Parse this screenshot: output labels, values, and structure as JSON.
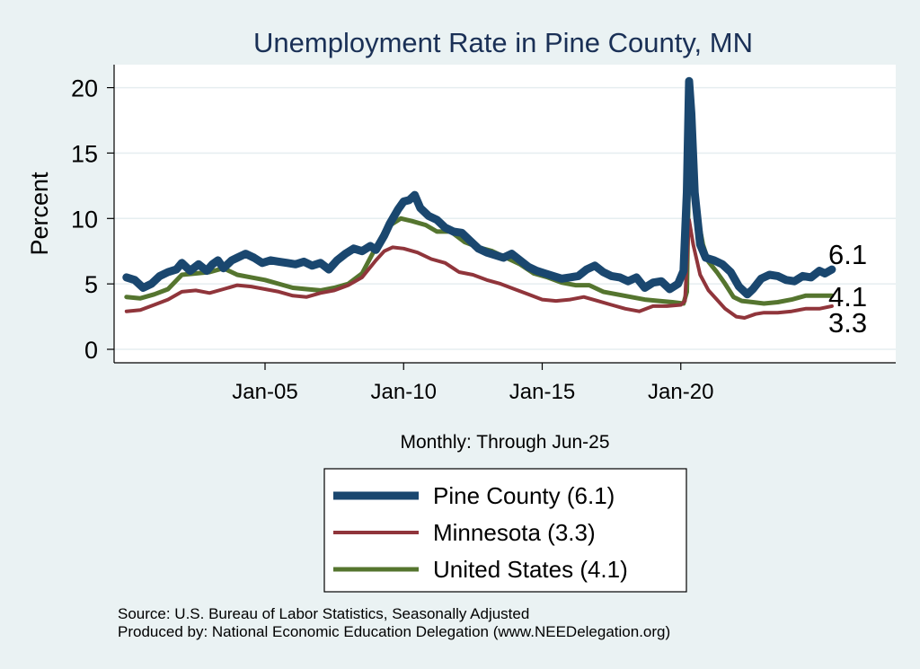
{
  "chart_data": {
    "type": "line",
    "title": "Unemployment Rate in Pine  County, MN",
    "ylabel": "Percent",
    "xlabel": "Monthly: Through Jun-25",
    "ylim": [
      0,
      21
    ],
    "yticks": [
      0,
      5,
      10,
      15,
      20
    ],
    "xticks": [
      {
        "label": "Jan-05",
        "x": 2005
      },
      {
        "label": "Jan-10",
        "x": 2010
      },
      {
        "label": "Jan-15",
        "x": 2015
      },
      {
        "label": "Jan-20",
        "x": 2020
      }
    ],
    "xlim": [
      2000,
      2026.5
    ],
    "grid": true,
    "legend_position": "bottom",
    "series": [
      {
        "name": "Pine  County (6.1)",
        "end_label": "6.1",
        "color": "#1a476f",
        "points": [
          [
            2000.0,
            5.5
          ],
          [
            2000.3,
            5.3
          ],
          [
            2000.6,
            4.7
          ],
          [
            2000.9,
            5.0
          ],
          [
            2001.2,
            5.6
          ],
          [
            2001.5,
            5.9
          ],
          [
            2001.8,
            6.1
          ],
          [
            2002.0,
            6.6
          ],
          [
            2002.3,
            6.0
          ],
          [
            2002.6,
            6.5
          ],
          [
            2002.9,
            6.0
          ],
          [
            2003.1,
            6.5
          ],
          [
            2003.3,
            6.8
          ],
          [
            2003.5,
            6.2
          ],
          [
            2003.8,
            6.8
          ],
          [
            2004.0,
            7.0
          ],
          [
            2004.3,
            7.3
          ],
          [
            2004.6,
            7.0
          ],
          [
            2004.9,
            6.6
          ],
          [
            2005.2,
            6.8
          ],
          [
            2005.5,
            6.7
          ],
          [
            2005.8,
            6.6
          ],
          [
            2006.1,
            6.5
          ],
          [
            2006.4,
            6.7
          ],
          [
            2006.7,
            6.4
          ],
          [
            2007.0,
            6.6
          ],
          [
            2007.3,
            6.1
          ],
          [
            2007.6,
            6.8
          ],
          [
            2007.9,
            7.3
          ],
          [
            2008.2,
            7.7
          ],
          [
            2008.5,
            7.5
          ],
          [
            2008.8,
            7.9
          ],
          [
            2009.0,
            7.6
          ],
          [
            2009.3,
            8.7
          ],
          [
            2009.5,
            9.6
          ],
          [
            2009.8,
            10.7
          ],
          [
            2010.0,
            11.3
          ],
          [
            2010.2,
            11.4
          ],
          [
            2010.4,
            11.8
          ],
          [
            2010.6,
            10.8
          ],
          [
            2010.9,
            10.2
          ],
          [
            2011.2,
            9.9
          ],
          [
            2011.5,
            9.3
          ],
          [
            2011.8,
            9.0
          ],
          [
            2012.1,
            8.9
          ],
          [
            2012.4,
            8.3
          ],
          [
            2012.7,
            7.7
          ],
          [
            2013.0,
            7.4
          ],
          [
            2013.3,
            7.2
          ],
          [
            2013.6,
            7.0
          ],
          [
            2013.9,
            7.3
          ],
          [
            2014.2,
            6.8
          ],
          [
            2014.5,
            6.3
          ],
          [
            2014.8,
            6.0
          ],
          [
            2015.1,
            5.8
          ],
          [
            2015.4,
            5.6
          ],
          [
            2015.7,
            5.4
          ],
          [
            2016.0,
            5.5
          ],
          [
            2016.3,
            5.6
          ],
          [
            2016.6,
            6.1
          ],
          [
            2016.9,
            6.4
          ],
          [
            2017.2,
            5.9
          ],
          [
            2017.5,
            5.6
          ],
          [
            2017.8,
            5.5
          ],
          [
            2018.1,
            5.2
          ],
          [
            2018.4,
            5.5
          ],
          [
            2018.7,
            4.7
          ],
          [
            2019.0,
            5.1
          ],
          [
            2019.3,
            5.2
          ],
          [
            2019.6,
            4.6
          ],
          [
            2019.9,
            5.0
          ],
          [
            2020.1,
            6.0
          ],
          [
            2020.22,
            12.0
          ],
          [
            2020.3,
            20.5
          ],
          [
            2020.38,
            18.0
          ],
          [
            2020.5,
            12.0
          ],
          [
            2020.7,
            8.0
          ],
          [
            2020.9,
            7.0
          ],
          [
            2021.2,
            6.8
          ],
          [
            2021.5,
            6.5
          ],
          [
            2021.8,
            5.9
          ],
          [
            2022.1,
            4.8
          ],
          [
            2022.4,
            4.2
          ],
          [
            2022.6,
            4.6
          ],
          [
            2022.9,
            5.4
          ],
          [
            2023.2,
            5.7
          ],
          [
            2023.5,
            5.6
          ],
          [
            2023.8,
            5.3
          ],
          [
            2024.1,
            5.2
          ],
          [
            2024.4,
            5.6
          ],
          [
            2024.7,
            5.5
          ],
          [
            2025.0,
            6.0
          ],
          [
            2025.2,
            5.8
          ],
          [
            2025.45,
            6.1
          ]
        ]
      },
      {
        "name": "Minnesota (3.3)",
        "end_label": "3.3",
        "color": "#90353b",
        "points": [
          [
            2000.0,
            2.9
          ],
          [
            2000.5,
            3.0
          ],
          [
            2001.0,
            3.4
          ],
          [
            2001.5,
            3.8
          ],
          [
            2002.0,
            4.4
          ],
          [
            2002.5,
            4.5
          ],
          [
            2003.0,
            4.3
          ],
          [
            2003.5,
            4.6
          ],
          [
            2004.0,
            4.9
          ],
          [
            2004.5,
            4.8
          ],
          [
            2005.0,
            4.6
          ],
          [
            2005.5,
            4.4
          ],
          [
            2006.0,
            4.1
          ],
          [
            2006.5,
            4.0
          ],
          [
            2007.0,
            4.3
          ],
          [
            2007.5,
            4.5
          ],
          [
            2008.0,
            4.9
          ],
          [
            2008.5,
            5.5
          ],
          [
            2009.0,
            6.8
          ],
          [
            2009.3,
            7.5
          ],
          [
            2009.6,
            7.8
          ],
          [
            2010.0,
            7.7
          ],
          [
            2010.5,
            7.4
          ],
          [
            2011.0,
            6.9
          ],
          [
            2011.5,
            6.6
          ],
          [
            2012.0,
            5.9
          ],
          [
            2012.5,
            5.7
          ],
          [
            2013.0,
            5.3
          ],
          [
            2013.5,
            5.0
          ],
          [
            2014.0,
            4.6
          ],
          [
            2014.5,
            4.2
          ],
          [
            2015.0,
            3.8
          ],
          [
            2015.5,
            3.7
          ],
          [
            2016.0,
            3.8
          ],
          [
            2016.5,
            4.0
          ],
          [
            2017.0,
            3.7
          ],
          [
            2017.5,
            3.4
          ],
          [
            2018.0,
            3.1
          ],
          [
            2018.5,
            2.9
          ],
          [
            2019.0,
            3.3
          ],
          [
            2019.5,
            3.3
          ],
          [
            2020.0,
            3.4
          ],
          [
            2020.15,
            3.7
          ],
          [
            2020.3,
            9.9
          ],
          [
            2020.45,
            8.0
          ],
          [
            2020.7,
            5.7
          ],
          [
            2021.0,
            4.5
          ],
          [
            2021.3,
            3.8
          ],
          [
            2021.6,
            3.1
          ],
          [
            2022.0,
            2.5
          ],
          [
            2022.3,
            2.4
          ],
          [
            2022.7,
            2.7
          ],
          [
            2023.0,
            2.8
          ],
          [
            2023.5,
            2.8
          ],
          [
            2024.0,
            2.9
          ],
          [
            2024.5,
            3.1
          ],
          [
            2025.0,
            3.1
          ],
          [
            2025.45,
            3.3
          ]
        ]
      },
      {
        "name": "United States (4.1)",
        "end_label": "4.1",
        "color": "#55752f",
        "points": [
          [
            2000.0,
            4.0
          ],
          [
            2000.5,
            3.9
          ],
          [
            2001.0,
            4.2
          ],
          [
            2001.5,
            4.6
          ],
          [
            2002.0,
            5.7
          ],
          [
            2002.5,
            5.8
          ],
          [
            2003.0,
            5.9
          ],
          [
            2003.5,
            6.2
          ],
          [
            2004.0,
            5.7
          ],
          [
            2004.5,
            5.5
          ],
          [
            2005.0,
            5.3
          ],
          [
            2005.5,
            5.0
          ],
          [
            2006.0,
            4.7
          ],
          [
            2006.5,
            4.6
          ],
          [
            2007.0,
            4.5
          ],
          [
            2007.5,
            4.7
          ],
          [
            2008.0,
            5.0
          ],
          [
            2008.5,
            5.8
          ],
          [
            2009.0,
            7.8
          ],
          [
            2009.3,
            9.0
          ],
          [
            2009.6,
            9.6
          ],
          [
            2009.9,
            10.0
          ],
          [
            2010.3,
            9.8
          ],
          [
            2010.8,
            9.5
          ],
          [
            2011.2,
            9.0
          ],
          [
            2011.7,
            9.0
          ],
          [
            2012.2,
            8.2
          ],
          [
            2012.7,
            7.8
          ],
          [
            2013.2,
            7.5
          ],
          [
            2013.7,
            7.0
          ],
          [
            2014.2,
            6.5
          ],
          [
            2014.7,
            5.8
          ],
          [
            2015.2,
            5.5
          ],
          [
            2015.7,
            5.1
          ],
          [
            2016.2,
            4.9
          ],
          [
            2016.7,
            4.9
          ],
          [
            2017.2,
            4.4
          ],
          [
            2017.7,
            4.2
          ],
          [
            2018.2,
            4.0
          ],
          [
            2018.7,
            3.8
          ],
          [
            2019.2,
            3.7
          ],
          [
            2019.7,
            3.6
          ],
          [
            2020.1,
            3.5
          ],
          [
            2020.22,
            4.4
          ],
          [
            2020.3,
            14.7
          ],
          [
            2020.45,
            13.0
          ],
          [
            2020.6,
            10.2
          ],
          [
            2020.8,
            8.0
          ],
          [
            2021.0,
            6.7
          ],
          [
            2021.3,
            5.9
          ],
          [
            2021.6,
            5.0
          ],
          [
            2021.9,
            4.0
          ],
          [
            2022.2,
            3.7
          ],
          [
            2022.6,
            3.6
          ],
          [
            2023.0,
            3.5
          ],
          [
            2023.5,
            3.6
          ],
          [
            2024.0,
            3.8
          ],
          [
            2024.5,
            4.1
          ],
          [
            2025.0,
            4.1
          ],
          [
            2025.45,
            4.1
          ]
        ]
      }
    ]
  },
  "source_line": "Source: U.S. Bureau of Labor Statistics, Seasonally Adjusted",
  "produced_line": "Produced by: National Economic Education Delegation (www.NEEDelegation.org)"
}
